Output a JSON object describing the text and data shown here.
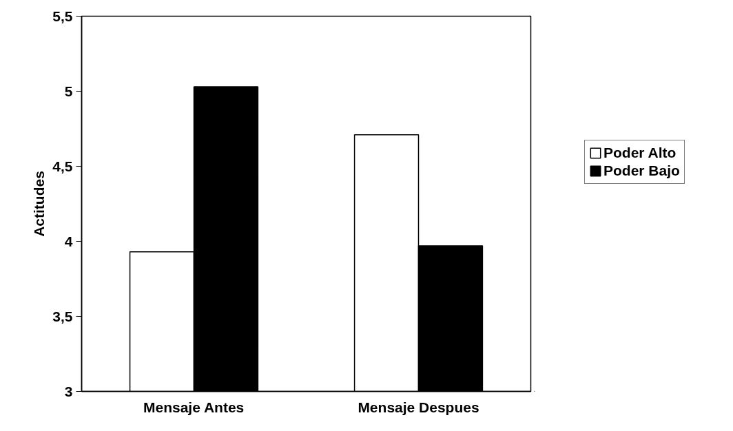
{
  "chart_data": {
    "type": "bar",
    "ylabel": "Actitudes",
    "categories": [
      "Mensaje Antes",
      "Mensaje Despues"
    ],
    "series": [
      {
        "name": "Poder Alto",
        "color": "#ffffff",
        "values": [
          3.93,
          4.71
        ]
      },
      {
        "name": "Poder Bajo",
        "color": "#000000",
        "values": [
          5.03,
          3.97
        ]
      }
    ],
    "ylim": [
      3,
      5.5
    ],
    "yticks": [
      3,
      {
        "value": 3.5,
        "label": "3,5"
      },
      4,
      {
        "value": 4.5,
        "label": "4,5"
      },
      5,
      {
        "value": 5.5,
        "label": "5,5"
      }
    ],
    "grid": false,
    "legend": "right"
  }
}
